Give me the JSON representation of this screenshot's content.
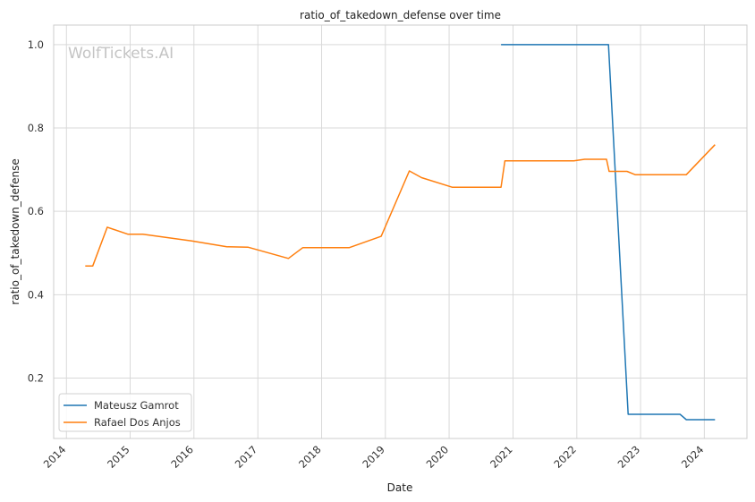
{
  "chart_data": {
    "type": "line",
    "title": "ratio_of_takedown_defense over time",
    "xlabel": "Date",
    "ylabel": "ratio_of_takedown_defense",
    "watermark": "WolfTickets.AI",
    "xlim": [
      "2013-10-20",
      "2024-09-01"
    ],
    "ylim": [
      0.055,
      1.047
    ],
    "x_ticks": [
      "2014",
      "2015",
      "2016",
      "2017",
      "2018",
      "2019",
      "2020",
      "2021",
      "2022",
      "2023",
      "2024"
    ],
    "y_ticks": [
      0.2,
      0.4,
      0.6,
      0.8,
      1.0
    ],
    "y_tick_labels": [
      "0.2",
      "0.4",
      "0.6",
      "0.8",
      "1.0"
    ],
    "grid": true,
    "legend_position": "lower-left",
    "series": [
      {
        "name": "Mateusz Gamrot",
        "color": "#1f77b4",
        "points": [
          [
            "2020-10-24",
            1.0
          ],
          [
            "2022-07-01",
            1.0
          ],
          [
            "2022-10-22",
            0.113
          ],
          [
            "2023-08-15",
            0.113
          ],
          [
            "2023-09-20",
            0.1
          ],
          [
            "2024-03-02",
            0.1
          ]
        ]
      },
      {
        "name": "Rafael Dos Anjos",
        "color": "#ff7f0e",
        "points": [
          [
            "2014-04-19",
            0.469
          ],
          [
            "2014-06-01",
            0.469
          ],
          [
            "2014-08-23",
            0.562
          ],
          [
            "2014-12-20",
            0.545
          ],
          [
            "2015-03-14",
            0.545
          ],
          [
            "2015-12-19",
            0.529
          ],
          [
            "2016-07-07",
            0.515
          ],
          [
            "2016-11-05",
            0.514
          ],
          [
            "2017-06-25",
            0.487
          ],
          [
            "2017-09-16",
            0.513
          ],
          [
            "2018-06-09",
            0.513
          ],
          [
            "2018-12-08",
            0.54
          ],
          [
            "2019-05-18",
            0.697
          ],
          [
            "2019-07-27",
            0.681
          ],
          [
            "2020-01-18",
            0.658
          ],
          [
            "2020-10-24",
            0.658
          ],
          [
            "2020-11-15",
            0.721
          ],
          [
            "2021-12-15",
            0.721
          ],
          [
            "2022-02-15",
            0.725
          ],
          [
            "2022-06-20",
            0.725
          ],
          [
            "2022-07-05",
            0.696
          ],
          [
            "2022-10-15",
            0.696
          ],
          [
            "2022-12-01",
            0.688
          ],
          [
            "2023-09-20",
            0.688
          ],
          [
            "2024-03-02",
            0.76
          ]
        ]
      }
    ]
  }
}
